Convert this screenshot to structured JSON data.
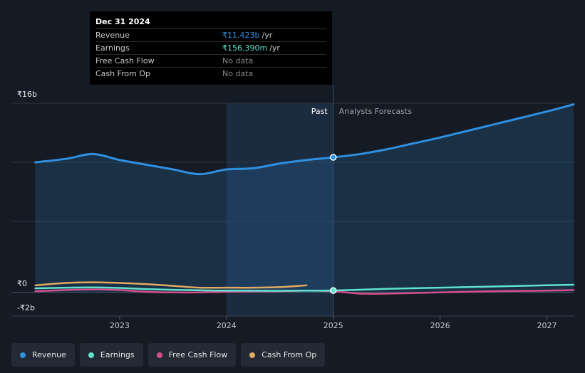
{
  "tooltip": {
    "date": "Dec 31 2024",
    "rows": [
      {
        "label": "Revenue",
        "value": "₹11.423b",
        "unit": "/yr",
        "color": "#2f8fe0"
      },
      {
        "label": "Earnings",
        "value": "₹156.390m",
        "unit": "/yr",
        "color": "#5fe3cf"
      },
      {
        "label": "Free Cash Flow",
        "value": "No data",
        "unit": "",
        "color": "#8a8a8a"
      },
      {
        "label": "Cash From Op",
        "value": "No data",
        "unit": "",
        "color": "#8a8a8a"
      }
    ]
  },
  "legend": [
    {
      "label": "Revenue",
      "color": "#2f8fe0"
    },
    {
      "label": "Earnings",
      "color": "#5fe3cf"
    },
    {
      "label": "Free Cash Flow",
      "color": "#d64e8b"
    },
    {
      "label": "Cash From Op",
      "color": "#e0aa62"
    }
  ],
  "chart_data": {
    "type": "line",
    "title": "",
    "xlabel": "",
    "ylabel": "",
    "y_unit": "₹b",
    "ylim": [
      -2,
      16
    ],
    "xlim": [
      2022.2,
      2027.25
    ],
    "y_tick_labels": [
      {
        "value": 16,
        "label": "₹16b"
      },
      {
        "value": 0,
        "label": "₹0"
      },
      {
        "value": -2,
        "label": "-₹2b"
      }
    ],
    "gridlines": [
      16,
      11,
      6,
      0
    ],
    "x_ticks": [
      {
        "value": 2023,
        "label": "2023"
      },
      {
        "value": 2024,
        "label": "2024"
      },
      {
        "value": 2025,
        "label": "2025"
      },
      {
        "value": 2026,
        "label": "2026"
      },
      {
        "value": 2027,
        "label": "2027"
      }
    ],
    "highlight_range": [
      2024.0,
      2025.0
    ],
    "divider_x": 2025.0,
    "past_label": "Past",
    "forecast_label": "Analysts Forecasts",
    "series": [
      {
        "name": "Revenue",
        "color": "#2f8fe0",
        "area": true,
        "points": [
          [
            2022.21,
            11.0
          ],
          [
            2022.5,
            11.3
          ],
          [
            2022.75,
            11.7
          ],
          [
            2023.0,
            11.2
          ],
          [
            2023.25,
            10.8
          ],
          [
            2023.5,
            10.4
          ],
          [
            2023.75,
            10.0
          ],
          [
            2024.0,
            10.4
          ],
          [
            2024.25,
            10.5
          ],
          [
            2024.5,
            10.9
          ],
          [
            2024.75,
            11.2
          ],
          [
            2025.0,
            11.423
          ],
          [
            2025.25,
            11.7
          ],
          [
            2025.5,
            12.1
          ],
          [
            2025.75,
            12.6
          ],
          [
            2026.0,
            13.1
          ],
          [
            2026.5,
            14.2
          ],
          [
            2027.0,
            15.3
          ],
          [
            2027.25,
            15.9
          ]
        ]
      },
      {
        "name": "Earnings",
        "color": "#5fe3cf",
        "area": false,
        "points": [
          [
            2022.21,
            0.35
          ],
          [
            2022.5,
            0.4
          ],
          [
            2022.75,
            0.42
          ],
          [
            2023.0,
            0.38
          ],
          [
            2023.25,
            0.28
          ],
          [
            2023.5,
            0.22
          ],
          [
            2023.75,
            0.18
          ],
          [
            2024.0,
            0.15
          ],
          [
            2024.5,
            0.14
          ],
          [
            2024.75,
            0.15
          ],
          [
            2025.0,
            0.156
          ],
          [
            2025.5,
            0.3
          ],
          [
            2026.0,
            0.4
          ],
          [
            2026.5,
            0.5
          ],
          [
            2027.0,
            0.6
          ],
          [
            2027.25,
            0.65
          ]
        ]
      },
      {
        "name": "Free Cash Flow",
        "color": "#d64e8b",
        "area": false,
        "points": [
          [
            2022.21,
            0.1
          ],
          [
            2022.5,
            0.2
          ],
          [
            2022.75,
            0.25
          ],
          [
            2023.0,
            0.2
          ],
          [
            2023.25,
            0.05
          ],
          [
            2023.5,
            0.0
          ],
          [
            2023.75,
            0.0
          ],
          [
            2024.0,
            0.05
          ],
          [
            2024.5,
            0.1
          ],
          [
            2024.75,
            0.15
          ],
          [
            2025.0,
            0.1
          ],
          [
            2025.25,
            -0.1
          ],
          [
            2025.5,
            -0.1
          ],
          [
            2026.0,
            0.0
          ],
          [
            2026.5,
            0.1
          ],
          [
            2027.0,
            0.15
          ],
          [
            2027.25,
            0.2
          ]
        ]
      },
      {
        "name": "Cash From Op",
        "color": "#e0aa62",
        "area": false,
        "points": [
          [
            2022.21,
            0.6
          ],
          [
            2022.5,
            0.8
          ],
          [
            2022.75,
            0.85
          ],
          [
            2023.0,
            0.8
          ],
          [
            2023.25,
            0.7
          ],
          [
            2023.5,
            0.55
          ],
          [
            2023.75,
            0.4
          ],
          [
            2024.0,
            0.4
          ],
          [
            2024.25,
            0.4
          ],
          [
            2024.5,
            0.45
          ],
          [
            2024.75,
            0.6
          ]
        ]
      }
    ],
    "markers": [
      {
        "series": "Revenue",
        "x": 2025.0,
        "y": 11.423
      },
      {
        "series": "Earnings",
        "x": 2025.0,
        "y": 0.156
      }
    ]
  }
}
